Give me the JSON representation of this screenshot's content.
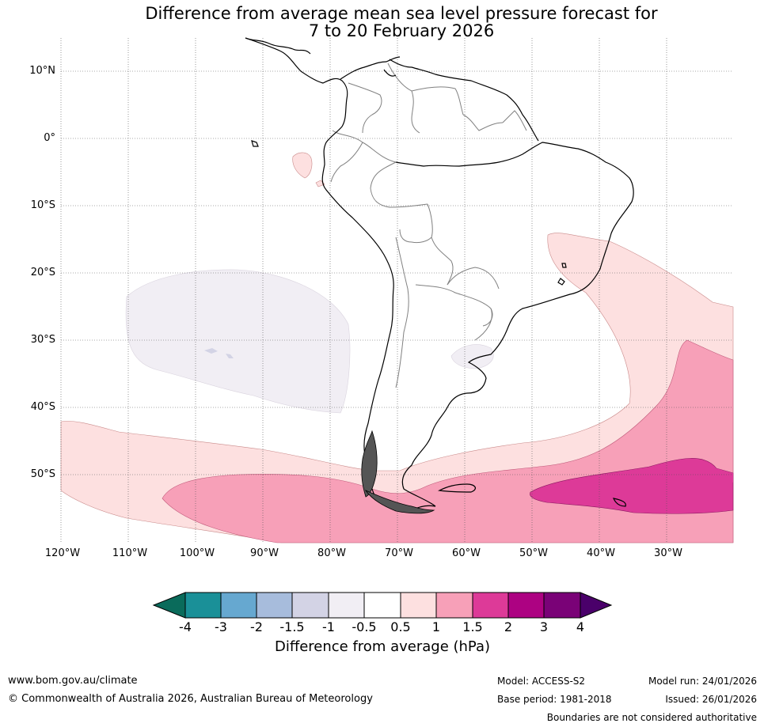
{
  "title": {
    "line1": "Difference from average mean sea level pressure forecast for",
    "line2": "7 to 20 February 2026"
  },
  "map": {
    "lat_labels": [
      "10°N",
      "0°",
      "10°S",
      "20°S",
      "30°S",
      "40°S",
      "50°S"
    ],
    "lat_values": [
      10,
      0,
      -10,
      -20,
      -30,
      -40,
      -50
    ],
    "lon_labels": [
      "120°W",
      "110°W",
      "100°W",
      "90°W",
      "80°W",
      "70°W",
      "60°W",
      "50°W",
      "40°W",
      "30°W"
    ],
    "lon_values": [
      -120,
      -110,
      -100,
      -90,
      -80,
      -70,
      -60,
      -50,
      -40,
      -30
    ]
  },
  "colorbar": {
    "ticks": [
      "-4",
      "-3",
      "-2",
      "-1.5",
      "-1",
      "-0.5",
      "0.5",
      "1",
      "1.5",
      "2",
      "3",
      "4"
    ],
    "colors": [
      "#1a9098",
      "#66a8d0",
      "#a7bcdc",
      "#d3d3e5",
      "#f1eef4",
      "#ffffff",
      "#fde0e0",
      "#f7a0b8",
      "#dd3a98",
      "#ad0282",
      "#7a0277"
    ],
    "extend_low_color": "#0a6b5b",
    "extend_high_color": "#4a006a",
    "title": "Difference from average (hPa)"
  },
  "footer": {
    "website": "www.bom.gov.au/climate",
    "copyright": "© Commonwealth of Australia 2026, Australian Bureau of Meteorology",
    "model": "Model: ACCESS-S2",
    "base_period": "Base period: 1981-2018",
    "model_run": "Model run: 24/01/2026",
    "issued": "Issued: 26/01/2026",
    "disclaimer": "Boundaries are not considered authoritative"
  }
}
